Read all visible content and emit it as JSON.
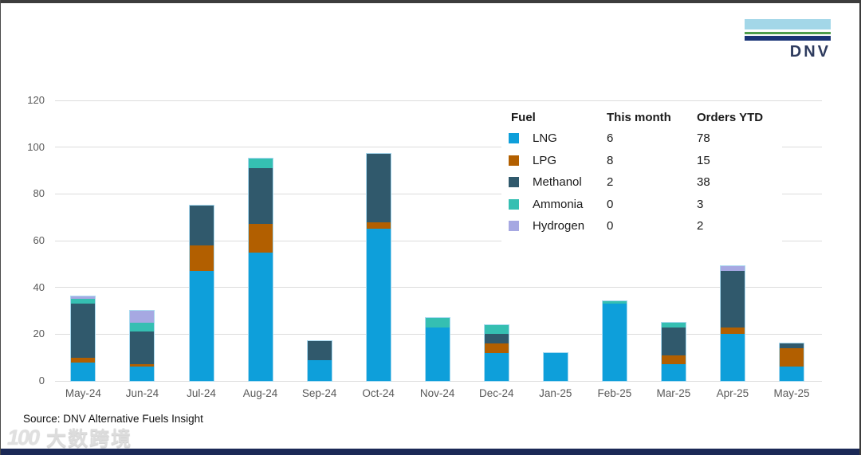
{
  "logo": {
    "text": "DNV"
  },
  "source_text": "Source: DNV Alternative Fuels Insight",
  "watermark": {
    "prefix": "100",
    "text": "大数跨境"
  },
  "colors": {
    "lng": "#0e9fda",
    "lpg": "#b25f00",
    "methanol": "#30596c",
    "ammonia": "#35bfb2",
    "hydrogen": "#a6a8e2",
    "gridline": "#dcdcdc",
    "axis_text": "#595959",
    "bottom_bar": "#1b2956"
  },
  "legend": {
    "col_fuel": "Fuel",
    "col_this_month": "This month",
    "col_orders_ytd": "Orders YTD",
    "rows": [
      {
        "label": "LNG",
        "this_month": "6",
        "orders_ytd": "78",
        "color": "#0e9fda"
      },
      {
        "label": "LPG",
        "this_month": "8",
        "orders_ytd": "15",
        "color": "#b25f00"
      },
      {
        "label": "Methanol",
        "this_month": "2",
        "orders_ytd": "38",
        "color": "#30596c"
      },
      {
        "label": "Ammonia",
        "this_month": "0",
        "orders_ytd": "3",
        "color": "#35bfb2"
      },
      {
        "label": "Hydrogen",
        "this_month": "0",
        "orders_ytd": "2",
        "color": "#a6a8e2"
      }
    ]
  },
  "chart_data": {
    "type": "bar",
    "stacked": true,
    "title": "",
    "xlabel": "",
    "ylabel": "",
    "categories": [
      "May-24",
      "Jun-24",
      "Jul-24",
      "Aug-24",
      "Sep-24",
      "Oct-24",
      "Nov-24",
      "Dec-24",
      "Jan-25",
      "Feb-25",
      "Mar-25",
      "Apr-25",
      "May-25"
    ],
    "series": [
      {
        "name": "LNG",
        "color": "#0e9fda",
        "values": [
          8,
          6,
          47,
          55,
          9,
          65,
          23,
          12,
          12,
          33,
          7,
          20,
          6
        ]
      },
      {
        "name": "LPG",
        "color": "#b25f00",
        "values": [
          2,
          1,
          11,
          12,
          0,
          3,
          0,
          4,
          0,
          0,
          4,
          3,
          8
        ]
      },
      {
        "name": "Methanol",
        "color": "#30596c",
        "values": [
          23,
          14,
          17,
          24,
          8,
          29,
          0,
          4,
          0,
          0,
          12,
          24,
          2
        ]
      },
      {
        "name": "Ammonia",
        "color": "#35bfb2",
        "values": [
          2,
          4,
          0,
          4,
          0,
          0,
          4,
          4,
          0,
          1,
          2,
          0,
          0
        ]
      },
      {
        "name": "Hydrogen",
        "color": "#a6a8e2",
        "values": [
          1,
          5,
          0,
          0,
          0,
          0,
          0,
          0,
          0,
          0,
          0,
          2,
          0
        ]
      }
    ],
    "totals": [
      36,
      30,
      75,
      95,
      17,
      97,
      27,
      24,
      12,
      34,
      25,
      49,
      16
    ],
    "ylim": [
      0,
      120
    ],
    "yticks": [
      0,
      20,
      40,
      60,
      80,
      100,
      120
    ],
    "grid": true,
    "legend_position": "top-right"
  }
}
